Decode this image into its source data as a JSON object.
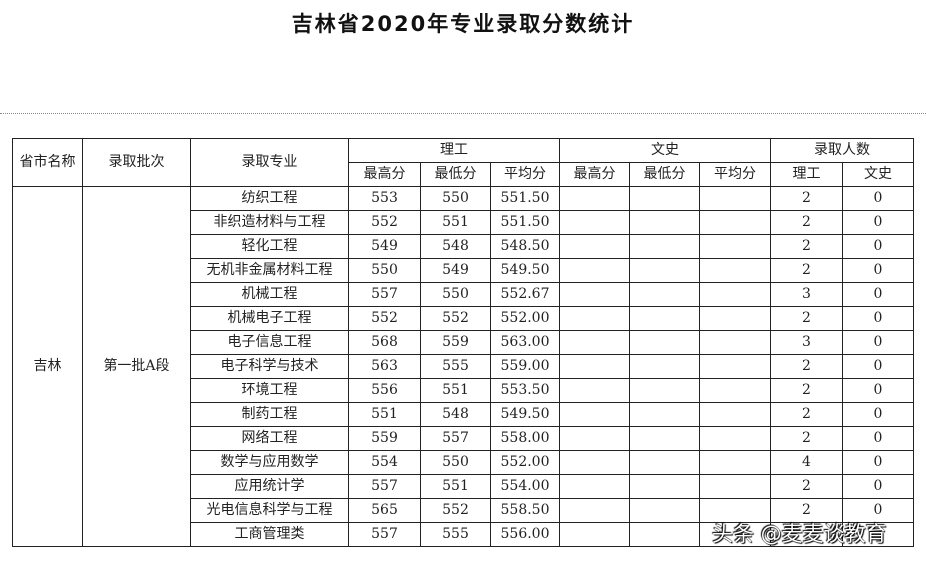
{
  "title": "吉林省2020年专业录取分数统计",
  "headers": {
    "province": "省市名称",
    "batch": "录取批次",
    "major": "录取专业",
    "science": "理工",
    "arts": "文史",
    "admitted": "录取人数",
    "max": "最高分",
    "min": "最低分",
    "avg": "平均分",
    "sci_count": "理工",
    "arts_count": "文史"
  },
  "province": "吉林",
  "batch": "第一批A段",
  "rows": [
    {
      "major": "纺织工程",
      "max": "553",
      "min": "550",
      "avg": "551.50",
      "sci": "2",
      "arts": "0"
    },
    {
      "major": "非织造材料与工程",
      "max": "552",
      "min": "551",
      "avg": "551.50",
      "sci": "2",
      "arts": "0"
    },
    {
      "major": "轻化工程",
      "max": "549",
      "min": "548",
      "avg": "548.50",
      "sci": "2",
      "arts": "0"
    },
    {
      "major": "无机非金属材料工程",
      "max": "550",
      "min": "549",
      "avg": "549.50",
      "sci": "2",
      "arts": "0"
    },
    {
      "major": "机械工程",
      "max": "557",
      "min": "550",
      "avg": "552.67",
      "sci": "3",
      "arts": "0"
    },
    {
      "major": "机械电子工程",
      "max": "552",
      "min": "552",
      "avg": "552.00",
      "sci": "2",
      "arts": "0"
    },
    {
      "major": "电子信息工程",
      "max": "568",
      "min": "559",
      "avg": "563.00",
      "sci": "3",
      "arts": "0"
    },
    {
      "major": "电子科学与技术",
      "max": "563",
      "min": "555",
      "avg": "559.00",
      "sci": "2",
      "arts": "0"
    },
    {
      "major": "环境工程",
      "max": "556",
      "min": "551",
      "avg": "553.50",
      "sci": "2",
      "arts": "0"
    },
    {
      "major": "制药工程",
      "max": "551",
      "min": "548",
      "avg": "549.50",
      "sci": "2",
      "arts": "0"
    },
    {
      "major": "网络工程",
      "max": "559",
      "min": "557",
      "avg": "558.00",
      "sci": "2",
      "arts": "0"
    },
    {
      "major": "数学与应用数学",
      "max": "554",
      "min": "550",
      "avg": "552.00",
      "sci": "4",
      "arts": "0"
    },
    {
      "major": "应用统计学",
      "max": "557",
      "min": "551",
      "avg": "554.00",
      "sci": "2",
      "arts": "0"
    },
    {
      "major": "光电信息科学与工程",
      "max": "565",
      "min": "552",
      "avg": "558.50",
      "sci": "2",
      "arts": "0"
    },
    {
      "major": "工商管理类",
      "max": "557",
      "min": "555",
      "avg": "556.00",
      "sci": "",
      "arts": ""
    }
  ],
  "watermark": "头条 @麦麦谈教育"
}
